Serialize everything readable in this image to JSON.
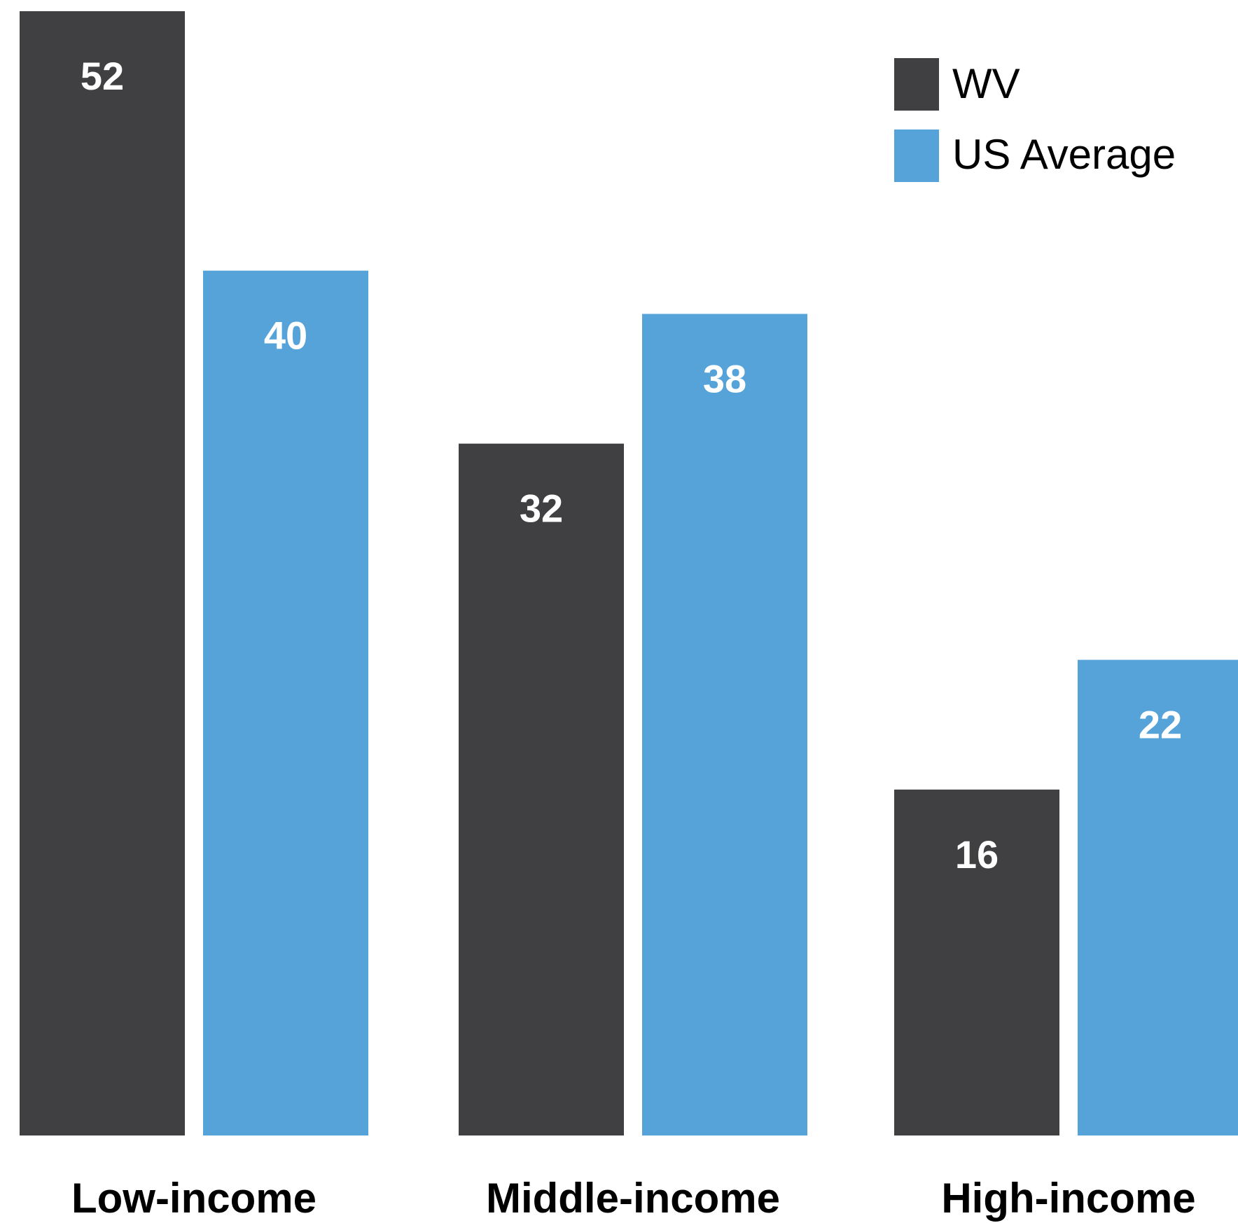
{
  "chart_data": {
    "type": "bar",
    "categories": [
      "Low-income",
      "Middle-income",
      "High-income"
    ],
    "series": [
      {
        "name": "WV",
        "values": [
          52,
          32,
          16
        ],
        "color": "#404042"
      },
      {
        "name": "US Average",
        "values": [
          40,
          38,
          22
        ],
        "color": "#56a3da"
      }
    ],
    "title": "",
    "xlabel": "",
    "ylabel": "",
    "ylim": [
      0,
      52
    ],
    "grid": false,
    "legend_position": "top-right",
    "data_labels": true
  }
}
